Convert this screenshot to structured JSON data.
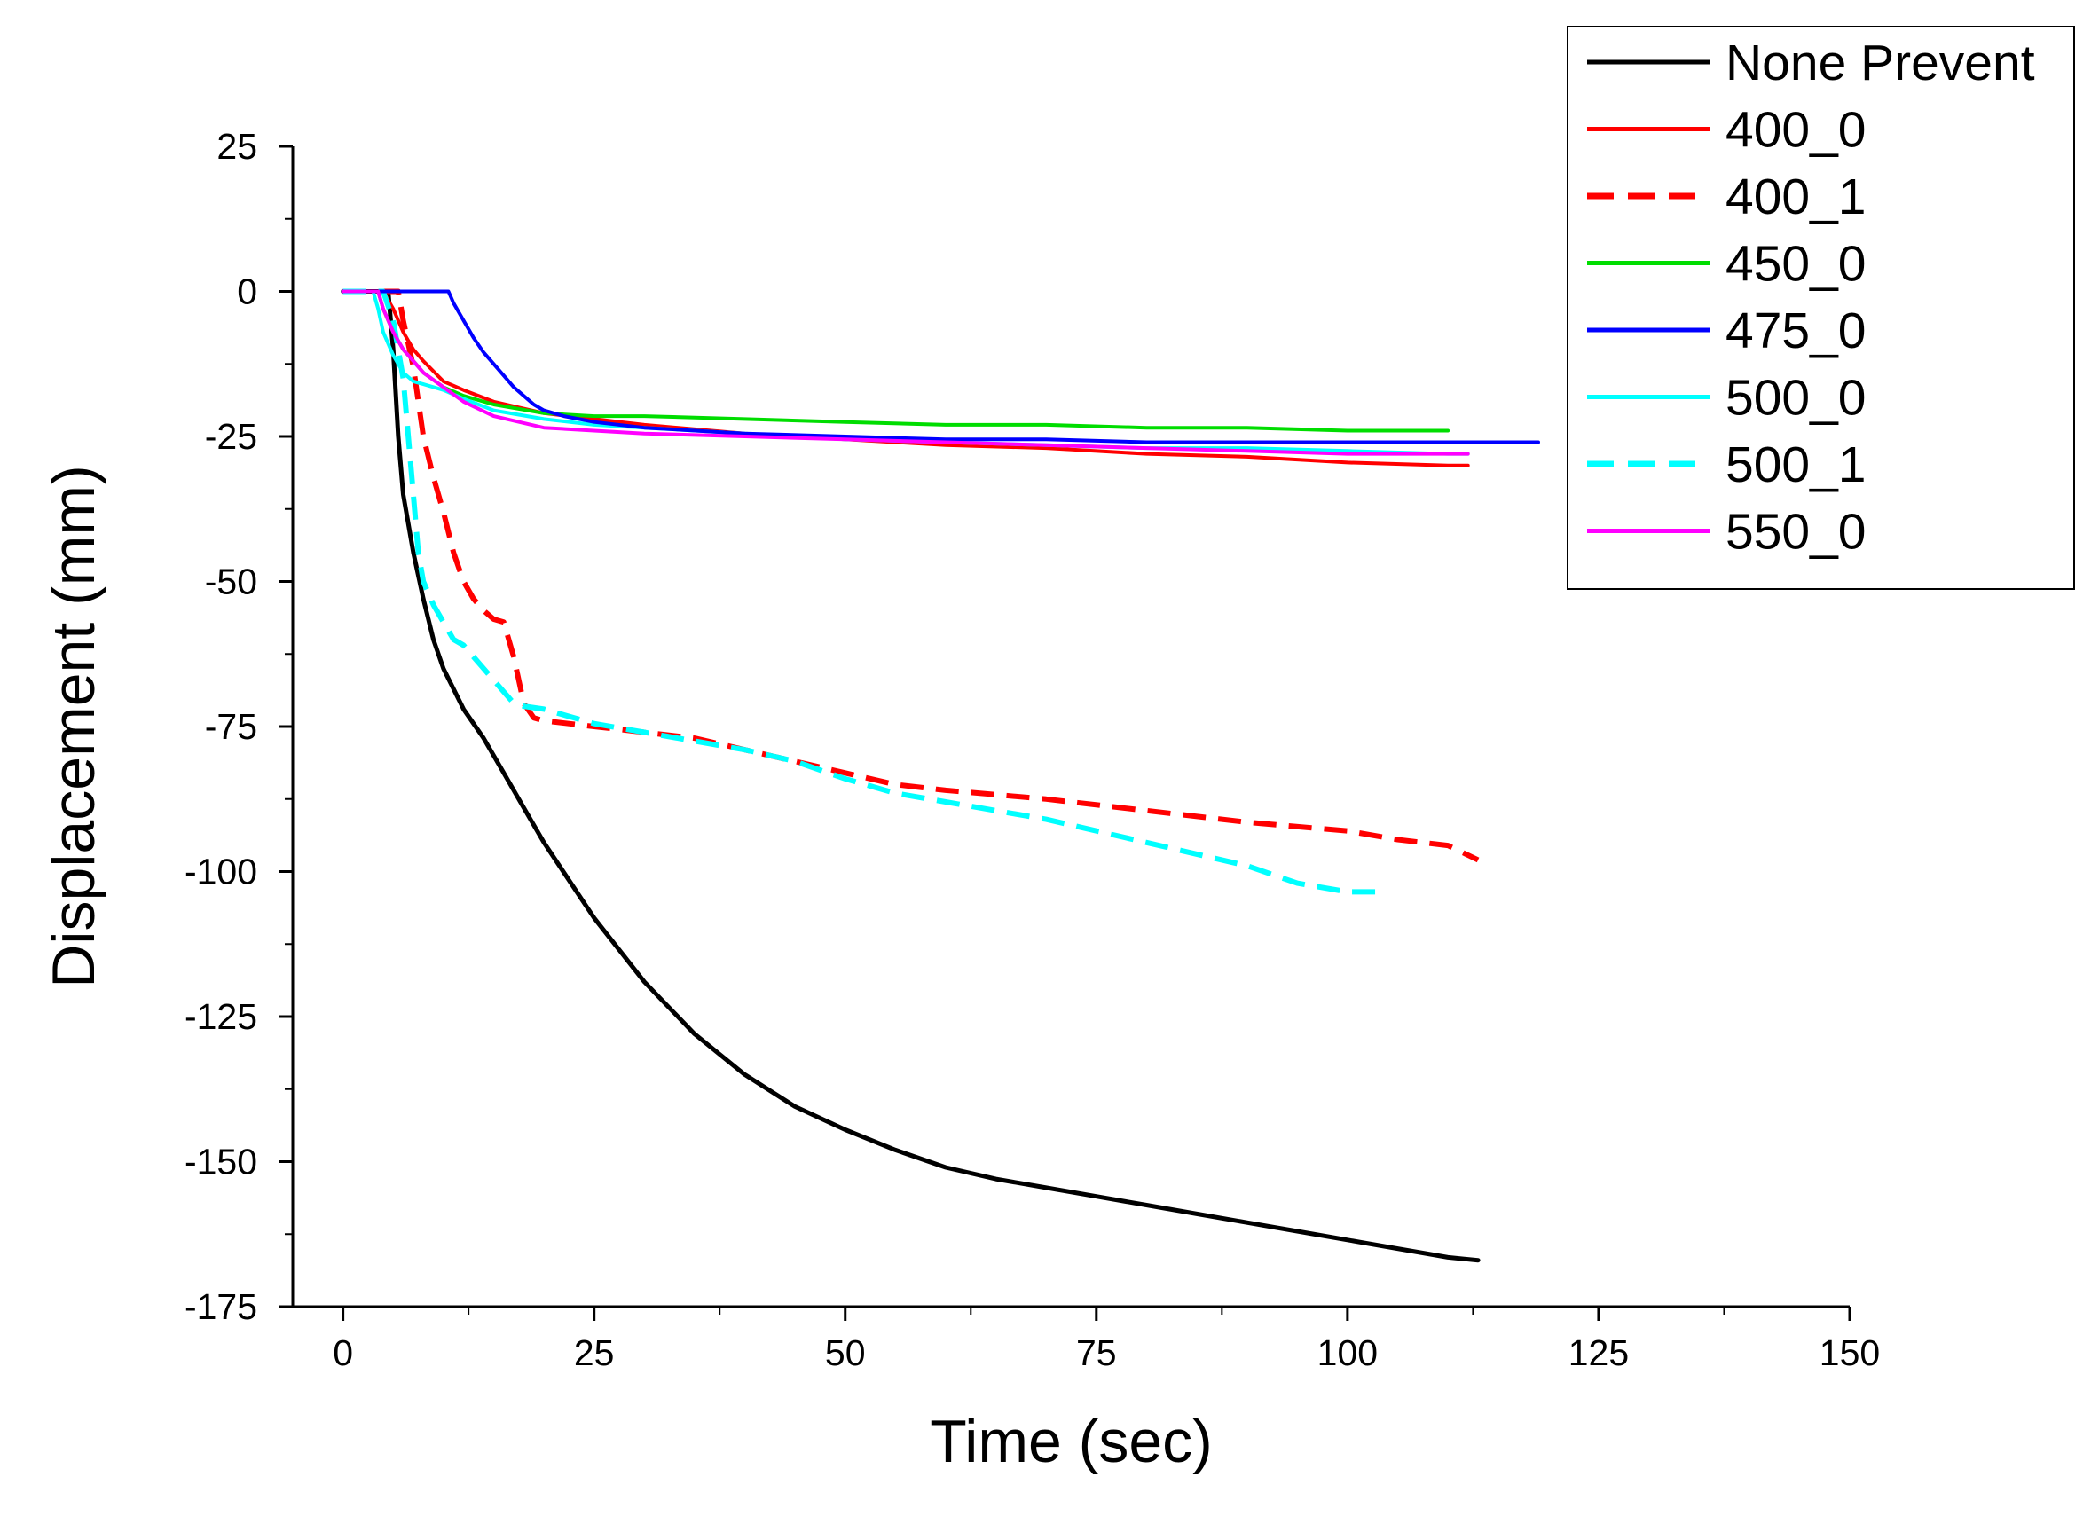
{
  "chart_data": {
    "type": "line",
    "title": "",
    "xlabel": "Time (sec)",
    "ylabel": "Displacement (mm)",
    "xlim": [
      -5,
      150
    ],
    "ylim": [
      -175,
      25
    ],
    "xticks": [
      0,
      25,
      50,
      75,
      100,
      125,
      150
    ],
    "yticks": [
      25,
      0,
      -25,
      -50,
      -75,
      -100,
      -125,
      -150,
      -175
    ],
    "xtick_labels": [
      "0",
      "25",
      "50",
      "75",
      "100",
      "125",
      "150"
    ],
    "ytick_labels": [
      "25",
      "0",
      "-25",
      "-50",
      "-75",
      "-100",
      "-125",
      "-150",
      "-175"
    ],
    "grid": false,
    "legend_position": "top-right",
    "series": [
      {
        "name": "None Prevent",
        "color": "#000000",
        "style": "solid",
        "x": [
          0,
          4.5,
          5.0,
          5.5,
          6,
          7,
          8,
          9,
          10,
          12,
          14,
          16,
          18,
          20,
          25,
          30,
          35,
          40,
          45,
          50,
          55,
          60,
          65,
          70,
          75,
          80,
          85,
          90,
          95,
          100,
          105,
          110,
          113
        ],
        "y": [
          0,
          0,
          -10,
          -25,
          -35,
          -45,
          -53,
          -60,
          -65,
          -72,
          -77,
          -83,
          -89,
          -95,
          -108,
          -119,
          -128,
          -135,
          -140.5,
          -144.5,
          -148,
          -151,
          -153,
          -154.5,
          -156,
          -157.5,
          -159,
          -160.5,
          -162,
          -163.5,
          -165,
          -166.5,
          -167
        ]
      },
      {
        "name": "400_0",
        "color": "#ff0000",
        "style": "solid",
        "x": [
          0,
          4,
          5,
          6,
          7,
          8,
          10,
          12,
          15,
          20,
          25,
          30,
          40,
          50,
          60,
          70,
          80,
          90,
          100,
          110,
          112
        ],
        "y": [
          0,
          0,
          -3,
          -7,
          -10,
          -12,
          -15.5,
          -17,
          -19,
          -21,
          -22,
          -23,
          -24.5,
          -25.5,
          -26.5,
          -27,
          -28,
          -28.5,
          -29.5,
          -30,
          -30
        ]
      },
      {
        "name": "400_1",
        "color": "#ff0000",
        "style": "dashed",
        "x": [
          0,
          5.5,
          6,
          7,
          8,
          9,
          10,
          11,
          12,
          13,
          14,
          15,
          16,
          17,
          18,
          19,
          20,
          25,
          30,
          35,
          40,
          45,
          50,
          55,
          60,
          70,
          80,
          90,
          100,
          105,
          110,
          113
        ],
        "y": [
          0,
          0,
          -5,
          -13,
          -25,
          -32,
          -38,
          -45,
          -50,
          -53,
          -55,
          -56.5,
          -57,
          -63,
          -71,
          -73.5,
          -74,
          -75,
          -76,
          -77,
          -79,
          -81,
          -83,
          -85,
          -86,
          -87.5,
          -89.5,
          -91.5,
          -93,
          -94.5,
          -95.5,
          -98
        ]
      },
      {
        "name": "450_0",
        "color": "#00dd00",
        "style": "solid",
        "x": [
          0,
          3.5,
          4,
          5,
          6,
          7,
          8,
          10,
          12,
          15,
          20,
          25,
          30,
          40,
          50,
          60,
          70,
          80,
          90,
          100,
          110
        ],
        "y": [
          0,
          0,
          -3,
          -7,
          -10,
          -12,
          -14,
          -16.5,
          -18,
          -19.5,
          -21,
          -21.5,
          -21.5,
          -22,
          -22.5,
          -23,
          -23,
          -23.5,
          -23.5,
          -24,
          -24
        ]
      },
      {
        "name": "475_0",
        "color": "#0000ff",
        "style": "solid",
        "x": [
          0,
          10.5,
          11,
          12,
          13,
          14,
          15,
          16,
          17,
          18,
          19,
          20,
          22,
          25,
          30,
          40,
          50,
          60,
          70,
          80,
          90,
          100,
          110,
          119
        ],
        "y": [
          0,
          0,
          -2,
          -5,
          -8,
          -10.5,
          -12.5,
          -14.5,
          -16.5,
          -18,
          -19.5,
          -20.5,
          -21.5,
          -22.5,
          -23.5,
          -24.5,
          -25,
          -25.5,
          -25.5,
          -26,
          -26,
          -26,
          -26,
          -26
        ]
      },
      {
        "name": "500_0",
        "color": "#00ffff",
        "style": "solid",
        "x": [
          0,
          3,
          3.5,
          4,
          5,
          6,
          7,
          8,
          10,
          12,
          15,
          20,
          25,
          30,
          40,
          50,
          60,
          70,
          80,
          90,
          100,
          110,
          112
        ],
        "y": [
          0,
          0,
          -3,
          -7,
          -11,
          -14,
          -15.5,
          -16,
          -17,
          -18.5,
          -20.5,
          -22,
          -23,
          -23.5,
          -24.5,
          -25.5,
          -26,
          -26.5,
          -27,
          -27,
          -27.5,
          -28,
          -28
        ]
      },
      {
        "name": "500_1",
        "color": "#00ffff",
        "style": "dashed",
        "x": [
          0,
          4,
          5,
          6,
          6.5,
          7,
          7.5,
          8,
          9,
          10,
          11,
          12,
          13,
          14,
          15,
          16,
          17,
          18,
          20,
          25,
          30,
          35,
          40,
          45,
          50,
          55,
          60,
          70,
          80,
          90,
          95,
          100,
          103
        ],
        "y": [
          0,
          0,
          -5,
          -15,
          -25,
          -35,
          -45,
          -50,
          -54,
          -57,
          -60,
          -61,
          -63,
          -65,
          -67,
          -69,
          -71,
          -71.5,
          -72,
          -74.5,
          -76,
          -77.5,
          -79,
          -81,
          -84,
          -86.5,
          -88,
          -91,
          -95,
          -99,
          -102,
          -103.5,
          -103.5
        ]
      },
      {
        "name": "550_0",
        "color": "#ff00ff",
        "style": "solid",
        "x": [
          0,
          3.5,
          4,
          5,
          6,
          7,
          8,
          10,
          12,
          15,
          20,
          25,
          30,
          40,
          50,
          60,
          70,
          80,
          90,
          100,
          110,
          112
        ],
        "y": [
          0,
          0,
          -3,
          -7,
          -10,
          -12,
          -14,
          -16.5,
          -19,
          -21.5,
          -23.5,
          -24,
          -24.5,
          -25,
          -25.5,
          -26,
          -26.5,
          -27,
          -27.5,
          -28,
          -28,
          -28
        ]
      }
    ]
  }
}
